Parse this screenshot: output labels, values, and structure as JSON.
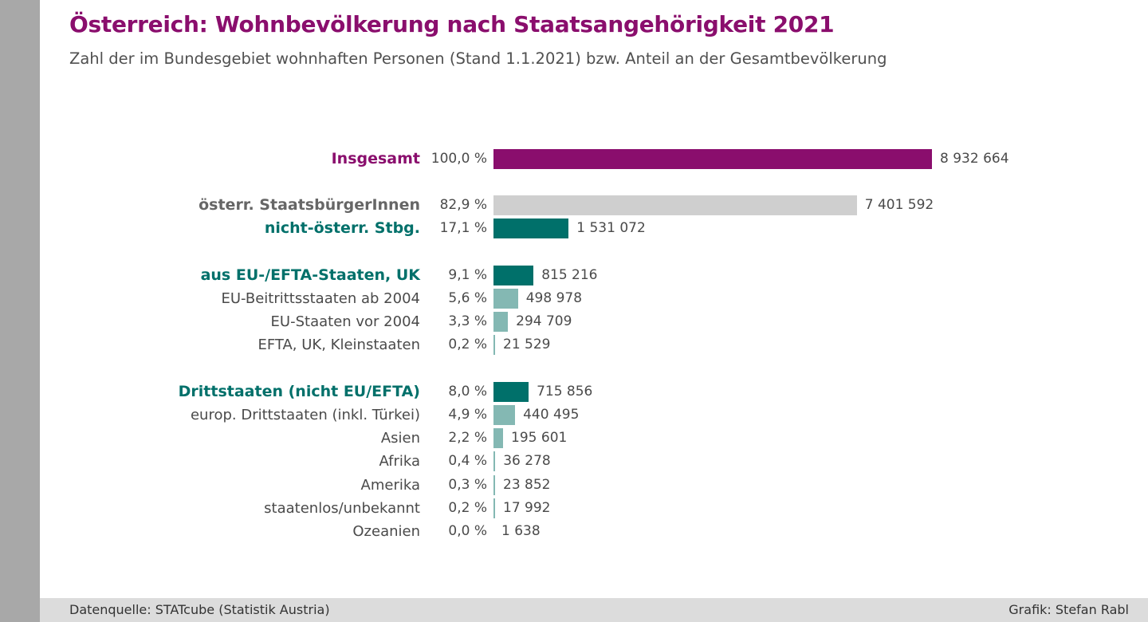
{
  "header": {
    "title": "Österreich: Wohnbevölkerung nach Staatsangehörigkeit 2021",
    "subtitle": "Zahl der im Bundesgebiet wohnhaften Personen (Stand 1.1.2021) bzw. Anteil an der Gesamtbevölkerung"
  },
  "footer": {
    "source": "Datenquelle: STATcube (Statistik Austria)",
    "credit": "Grafik: Stefan Rabl"
  },
  "colors": {
    "total": "#8a0e6d",
    "austrian": "#cfcfcf",
    "group": "#00706a",
    "sub": "#84b8b3",
    "label_total": "#8a0e6d",
    "label_austrian": "#666666",
    "label_group": "#00706a",
    "label_sub": "#4a4a4a"
  },
  "chart_data": {
    "type": "bar",
    "orientation": "horizontal",
    "title": "Österreich: Wohnbevölkerung nach Staatsangehörigkeit 2021",
    "subtitle": "Zahl der im Bundesgebiet wohnhaften Personen (Stand 1.1.2021) bzw. Anteil an der Gesamtbevölkerung",
    "xlim": [
      0,
      8932664
    ],
    "grid": false,
    "rows": [
      {
        "label": "Insgesamt",
        "percent": "100,0 %",
        "value": 8932664,
        "value_label": "8 932 664",
        "style": "total"
      },
      {
        "label": "österr. StaatsbürgerInnen",
        "percent": "82,9 %",
        "value": 7401592,
        "value_label": "7 401 592",
        "style": "austrian"
      },
      {
        "label": "nicht-österr. Stbg.",
        "percent": "17,1 %",
        "value": 1531072,
        "value_label": "1 531 072",
        "style": "group"
      },
      {
        "label": "aus EU-/EFTA-Staaten, UK",
        "percent": "9,1 %",
        "value": 815216,
        "value_label": "815 216",
        "style": "group"
      },
      {
        "label": "EU-Beitrittsstaaten ab 2004",
        "percent": "5,6 %",
        "value": 498978,
        "value_label": "498 978",
        "style": "sub"
      },
      {
        "label": "EU-Staaten vor 2004",
        "percent": "3,3 %",
        "value": 294709,
        "value_label": "294 709",
        "style": "sub"
      },
      {
        "label": "EFTA, UK, Kleinstaaten",
        "percent": "0,2 %",
        "value": 21529,
        "value_label": "21 529",
        "style": "sub"
      },
      {
        "label": "Drittstaaten (nicht EU/EFTA)",
        "percent": "8,0 %",
        "value": 715856,
        "value_label": "715 856",
        "style": "group"
      },
      {
        "label": "europ. Drittstaaten (inkl. Türkei)",
        "percent": "4,9 %",
        "value": 440495,
        "value_label": "440 495",
        "style": "sub"
      },
      {
        "label": "Asien",
        "percent": "2,2 %",
        "value": 195601,
        "value_label": "195 601",
        "style": "sub"
      },
      {
        "label": "Afrika",
        "percent": "0,4 %",
        "value": 36278,
        "value_label": "36 278",
        "style": "sub"
      },
      {
        "label": "Amerika",
        "percent": "0,3 %",
        "value": 23852,
        "value_label": "23 852",
        "style": "sub"
      },
      {
        "label": "staatenlos/unbekannt",
        "percent": "0,2 %",
        "value": 17992,
        "value_label": "17 992",
        "style": "sub"
      },
      {
        "label": "Ozeanien",
        "percent": "0,0 %",
        "value": 1638,
        "value_label": "1 638",
        "style": "sub"
      }
    ]
  }
}
